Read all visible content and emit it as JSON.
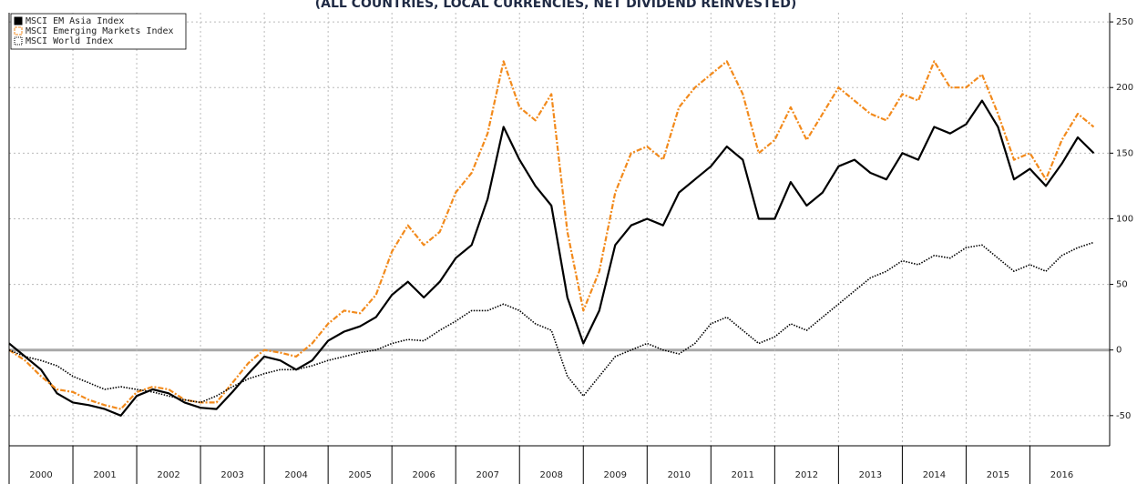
{
  "chart_data": {
    "type": "line",
    "subtitle": "(ALL COUNTRIES, LOCAL CURRENCIES, NET DIVIDEND REINVESTED)",
    "x": [
      2000,
      2000.25,
      2000.5,
      2000.75,
      2001,
      2001.25,
      2001.5,
      2001.75,
      2002,
      2002.25,
      2002.5,
      2002.75,
      2003,
      2003.25,
      2003.5,
      2003.75,
      2004,
      2004.25,
      2004.5,
      2004.75,
      2005,
      2005.25,
      2005.5,
      2005.75,
      2006,
      2006.25,
      2006.5,
      2006.75,
      2007,
      2007.25,
      2007.5,
      2007.75,
      2008,
      2008.25,
      2008.5,
      2008.75,
      2009,
      2009.25,
      2009.5,
      2009.75,
      2010,
      2010.25,
      2010.5,
      2010.75,
      2011,
      2011.25,
      2011.5,
      2011.75,
      2012,
      2012.25,
      2012.5,
      2012.75,
      2013,
      2013.25,
      2013.5,
      2013.75,
      2014,
      2014.25,
      2014.5,
      2014.75,
      2015,
      2015.25,
      2015.5,
      2015.75,
      2016,
      2016.25,
      2016.5,
      2016.75,
      2017
    ],
    "series": [
      {
        "name": "MSCI EM Asia Index",
        "color": "#000000",
        "style": "solid",
        "values": [
          5,
          -5,
          -15,
          -33,
          -40,
          -42,
          -45,
          -50,
          -35,
          -30,
          -33,
          -40,
          -44,
          -45,
          -32,
          -18,
          -5,
          -8,
          -15,
          -8,
          7,
          14,
          18,
          25,
          42,
          52,
          40,
          52,
          70,
          80,
          115,
          170,
          145,
          125,
          110,
          40,
          5,
          30,
          80,
          95,
          100,
          95,
          120,
          130,
          140,
          155,
          145,
          100,
          100,
          128,
          110,
          120,
          140,
          145,
          135,
          130,
          150,
          145,
          170,
          165,
          172,
          190,
          170,
          130,
          138,
          125,
          142,
          162,
          150
        ]
      },
      {
        "name": "MSCI Emerging Markets Index",
        "color": "#f28a1c",
        "style": "dash-dot",
        "values": [
          0,
          -8,
          -20,
          -30,
          -32,
          -38,
          -42,
          -45,
          -32,
          -28,
          -30,
          -38,
          -40,
          -40,
          -25,
          -10,
          0,
          -2,
          -5,
          5,
          20,
          30,
          28,
          42,
          75,
          95,
          80,
          90,
          120,
          135,
          165,
          220,
          185,
          175,
          195,
          90,
          30,
          60,
          120,
          150,
          155,
          145,
          185,
          200,
          210,
          220,
          195,
          150,
          160,
          185,
          160,
          180,
          200,
          190,
          180,
          175,
          195,
          190,
          220,
          200,
          200,
          210,
          180,
          145,
          150,
          130,
          160,
          180,
          170
        ]
      },
      {
        "name": "MSCI World Index",
        "color": "#000000",
        "style": "dotted",
        "values": [
          0,
          -5,
          -8,
          -12,
          -20,
          -25,
          -30,
          -28,
          -30,
          -32,
          -35,
          -38,
          -40,
          -35,
          -28,
          -22,
          -18,
          -15,
          -15,
          -12,
          -8,
          -5,
          -2,
          0,
          5,
          8,
          7,
          15,
          22,
          30,
          30,
          35,
          30,
          20,
          15,
          -20,
          -35,
          -20,
          -5,
          0,
          5,
          0,
          -3,
          5,
          20,
          25,
          15,
          5,
          10,
          20,
          15,
          25,
          35,
          45,
          55,
          60,
          68,
          65,
          72,
          70,
          78,
          80,
          70,
          60,
          65,
          60,
          72,
          78,
          82
        ]
      }
    ],
    "xlim": [
      2000,
      2017.25
    ],
    "xticks": [
      2000,
      2001,
      2002,
      2003,
      2004,
      2005,
      2006,
      2007,
      2008,
      2009,
      2010,
      2011,
      2012,
      2013,
      2014,
      2015,
      2016
    ],
    "ylim": [
      -73,
      257
    ],
    "yticks": [
      -50,
      0,
      50,
      100,
      150,
      200,
      250
    ],
    "grid": true,
    "legend": "top-left"
  }
}
